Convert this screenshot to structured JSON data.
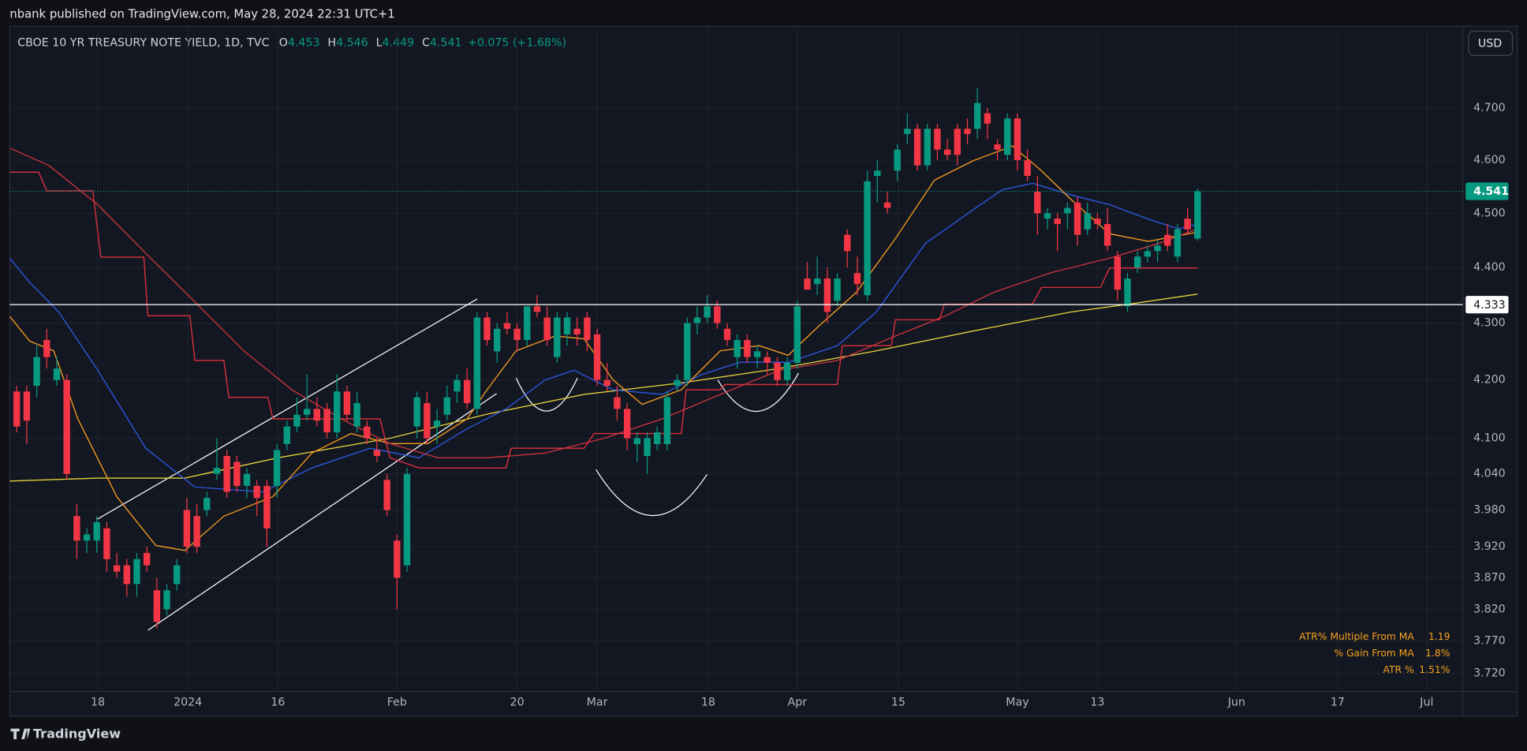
{
  "header": "nbank published on TradingView.com, May 28, 2024 22:31 UTC+1",
  "footer": "TradingView",
  "chart_data": {
    "type": "candlestick",
    "title": "CBOE 10 YR TREASURY NOTE YIELD, 1D, TVC",
    "legend_labels": {
      "open": "O",
      "high": "H",
      "low": "L",
      "close": "C"
    },
    "change_label": "+0.075 (+1.68%)",
    "currency": "USD",
    "up_color": "#089981",
    "down_color": "#f23645",
    "log_scale": true,
    "grid": true,
    "open": [
      4.18,
      4.18,
      4.19,
      4.27,
      4.2,
      4.2,
      3.97,
      3.93,
      3.93,
      3.95,
      3.89,
      3.89,
      3.86,
      3.91,
      3.85,
      3.82,
      3.86,
      3.98,
      3.97,
      3.98,
      4.04,
      4.07,
      4.06,
      4.02,
      4.02,
      4.02,
      4.02,
      4.09,
      4.12,
      4.14,
      4.15,
      4.15,
      4.11,
      4.18,
      4.12,
      4.12,
      4.08,
      4.03,
      3.93,
      3.89,
      4.12,
      4.16,
      4.12,
      4.14,
      4.18,
      4.2,
      4.15,
      4.31,
      4.25,
      4.3,
      4.29,
      4.27,
      4.33,
      4.31,
      4.24,
      4.28,
      4.29,
      4.31,
      4.28,
      4.2,
      4.17,
      4.15,
      4.09,
      4.07,
      4.09,
      4.09,
      4.19,
      4.2,
      4.3,
      4.31,
      4.33,
      4.29,
      4.24,
      4.27,
      4.24,
      4.24,
      4.23,
      4.2,
      4.23,
      4.38,
      4.37,
      4.38,
      4.34,
      4.46,
      4.39,
      4.35,
      4.57,
      4.52,
      4.58,
      4.65,
      4.66,
      4.59,
      4.66,
      4.62,
      4.66,
      4.66,
      4.66,
      4.69,
      4.63,
      4.61,
      4.68,
      4.6,
      4.54,
      4.49,
      4.49,
      4.5,
      4.52,
      4.47,
      4.49,
      4.48,
      4.42,
      4.33,
      4.4,
      4.42,
      4.43,
      4.46,
      4.42,
      4.49,
      4.453
    ],
    "high": [
      4.19,
      4.19,
      4.26,
      4.29,
      4.24,
      4.21,
      3.99,
      3.95,
      3.97,
      3.96,
      3.91,
      3.9,
      3.91,
      3.92,
      3.87,
      3.86,
      3.9,
      4.0,
      3.99,
      4.01,
      4.1,
      4.08,
      4.07,
      4.05,
      4.03,
      4.03,
      4.09,
      4.13,
      4.17,
      4.21,
      4.17,
      4.16,
      4.21,
      4.19,
      4.18,
      4.13,
      4.1,
      4.04,
      3.94,
      4.05,
      4.18,
      4.18,
      4.15,
      4.19,
      4.21,
      4.22,
      4.32,
      4.32,
      4.3,
      4.32,
      4.3,
      4.33,
      4.35,
      4.33,
      4.32,
      4.32,
      4.31,
      4.32,
      4.29,
      4.23,
      4.19,
      4.16,
      4.11,
      4.11,
      4.12,
      4.18,
      4.21,
      4.31,
      4.33,
      4.35,
      4.34,
      4.3,
      4.28,
      4.28,
      4.26,
      4.25,
      4.24,
      4.24,
      4.34,
      4.41,
      4.42,
      4.4,
      4.39,
      4.47,
      4.42,
      4.58,
      4.6,
      4.54,
      4.63,
      4.69,
      4.67,
      4.67,
      4.67,
      4.64,
      4.67,
      4.68,
      4.74,
      4.7,
      4.64,
      4.69,
      4.69,
      4.62,
      4.57,
      4.51,
      4.5,
      4.52,
      4.53,
      4.52,
      4.5,
      4.51,
      4.43,
      4.39,
      4.43,
      4.44,
      4.45,
      4.48,
      4.48,
      4.51,
      4.546
    ],
    "low": [
      4.11,
      4.09,
      4.17,
      4.22,
      4.19,
      4.03,
      3.9,
      3.91,
      3.91,
      3.88,
      3.87,
      3.84,
      3.84,
      3.88,
      3.79,
      3.81,
      3.85,
      3.91,
      3.91,
      3.97,
      4.03,
      4.0,
      4.01,
      4.0,
      3.97,
      3.92,
      4.0,
      4.08,
      4.11,
      4.13,
      4.12,
      4.1,
      4.1,
      4.13,
      4.11,
      4.09,
      4.06,
      3.97,
      3.82,
      3.88,
      4.1,
      4.09,
      4.09,
      4.13,
      4.16,
      4.15,
      4.14,
      4.26,
      4.23,
      4.28,
      4.25,
      4.26,
      4.31,
      4.26,
      4.23,
      4.26,
      4.26,
      4.25,
      4.19,
      4.18,
      4.13,
      4.08,
      4.06,
      4.04,
      4.08,
      4.08,
      4.18,
      4.19,
      4.28,
      4.3,
      4.29,
      4.26,
      4.22,
      4.23,
      4.22,
      4.21,
      4.19,
      4.19,
      4.22,
      4.36,
      4.35,
      4.3,
      4.33,
      4.4,
      4.35,
      4.34,
      4.52,
      4.5,
      4.56,
      4.63,
      4.58,
      4.58,
      4.6,
      4.6,
      4.59,
      4.63,
      4.64,
      4.64,
      4.6,
      4.6,
      4.58,
      4.56,
      4.46,
      4.47,
      4.43,
      4.47,
      4.44,
      4.46,
      4.47,
      4.43,
      4.34,
      4.32,
      4.39,
      4.41,
      4.41,
      4.43,
      4.41,
      4.46,
      4.449
    ],
    "close": [
      4.12,
      4.13,
      4.24,
      4.24,
      4.22,
      4.04,
      3.93,
      3.94,
      3.96,
      3.9,
      3.88,
      3.86,
      3.9,
      3.89,
      3.8,
      3.85,
      3.89,
      3.92,
      3.92,
      4.0,
      4.05,
      4.01,
      4.02,
      4.04,
      4.0,
      3.95,
      4.08,
      4.12,
      4.14,
      4.15,
      4.13,
      4.11,
      4.18,
      4.14,
      4.16,
      4.1,
      4.07,
      3.98,
      3.87,
      4.04,
      4.17,
      4.1,
      4.13,
      4.17,
      4.2,
      4.16,
      4.31,
      4.27,
      4.29,
      4.29,
      4.27,
      4.33,
      4.32,
      4.27,
      4.31,
      4.31,
      4.28,
      4.27,
      4.2,
      4.19,
      4.15,
      4.1,
      4.1,
      4.1,
      4.11,
      4.17,
      4.2,
      4.3,
      4.31,
      4.33,
      4.3,
      4.27,
      4.27,
      4.24,
      4.25,
      4.23,
      4.2,
      4.23,
      4.33,
      4.36,
      4.38,
      4.32,
      4.38,
      4.43,
      4.37,
      4.56,
      4.58,
      4.51,
      4.62,
      4.66,
      4.59,
      4.66,
      4.62,
      4.61,
      4.61,
      4.65,
      4.71,
      4.67,
      4.62,
      4.68,
      4.6,
      4.57,
      4.5,
      4.5,
      4.48,
      4.51,
      4.46,
      4.5,
      4.48,
      4.44,
      4.36,
      4.38,
      4.42,
      4.43,
      4.44,
      4.44,
      4.47,
      4.47,
      4.541
    ],
    "overlays": [
      {
        "color": "#e5d03a",
        "x": [
          -0.7,
          8.1,
          16.8,
          26.1,
          37.3,
          47.0,
          56.7,
          66.4,
          76.2,
          85.9,
          95.6,
          105.4,
          111.2,
          118
        ],
        "values": [
          4.028,
          4.033,
          4.033,
          4.067,
          4.1,
          4.141,
          4.175,
          4.195,
          4.22,
          4.251,
          4.286,
          4.32,
          4.334,
          4.352
        ]
      },
      {
        "color": "#2f56e0",
        "x": [
          -0.7,
          1.3,
          4.2,
          8.1,
          12.9,
          17.8,
          24.6,
          29.5,
          35.3,
          40.2,
          45.0,
          48.9,
          52.8,
          55.7,
          59.6,
          64.5,
          68.4,
          72.3,
          77.1,
          82.0,
          85.9,
          90.8,
          95.6,
          98.5,
          101.5,
          105.4,
          109.2,
          113.1,
          116.1,
          118
        ],
        "values": [
          4.417,
          4.373,
          4.32,
          4.217,
          4.083,
          4.018,
          4.01,
          4.05,
          4.083,
          4.067,
          4.116,
          4.15,
          4.2,
          4.217,
          4.183,
          4.175,
          4.209,
          4.231,
          4.231,
          4.26,
          4.32,
          4.444,
          4.507,
          4.544,
          4.556,
          4.534,
          4.516,
          4.489,
          4.471,
          4.48
        ]
      },
      {
        "color": "#f29a1f",
        "x": [
          -0.7,
          1.3,
          3.7,
          6.1,
          10.0,
          13.9,
          16.8,
          20.7,
          25.6,
          29.5,
          33.4,
          37.3,
          41.1,
          45.0,
          47.0,
          49.9,
          53.8,
          56.7,
          59.6,
          62.5,
          66.4,
          70.3,
          74.2,
          77.1,
          80.1,
          83.9,
          87.8,
          91.7,
          95.6,
          99.5,
          102.4,
          105.4,
          109.2,
          113.1,
          118
        ],
        "values": [
          4.312,
          4.268,
          4.251,
          4.133,
          4.002,
          3.922,
          3.914,
          3.97,
          4.002,
          4.075,
          4.108,
          4.091,
          4.091,
          4.133,
          4.183,
          4.251,
          4.277,
          4.272,
          4.2,
          4.158,
          4.183,
          4.251,
          4.26,
          4.243,
          4.294,
          4.355,
          4.453,
          4.562,
          4.599,
          4.627,
          4.58,
          4.525,
          4.462,
          4.448,
          4.465
        ]
      },
      {
        "color": "#c8343f",
        "x": [
          -0.7,
          3.2,
          8.1,
          12.9,
          17.8,
          22.7,
          27.5,
          32.4,
          37.3,
          42.1,
          47.0,
          52.8,
          58.7,
          64.5,
          70.3,
          76.2,
          82.0,
          87.8,
          92.7,
          97.6,
          103.4,
          109.2,
          114.1,
          118
        ],
        "values": [
          4.623,
          4.59,
          4.516,
          4.426,
          4.338,
          4.251,
          4.183,
          4.133,
          4.091,
          4.067,
          4.067,
          4.075,
          4.1,
          4.133,
          4.175,
          4.217,
          4.234,
          4.277,
          4.312,
          4.355,
          4.391,
          4.417,
          4.444,
          4.471
        ]
      },
      {
        "color": "#e0303e",
        "x": [
          -0.7,
          2.2,
          3.0,
          7.6,
          8.4,
          12.7,
          13.1,
          17.3,
          17.8,
          20.7,
          21.2,
          25.1,
          25.6,
          36.3,
          37.3,
          40.2,
          48.9,
          49.4,
          56.7,
          57.7,
          66.4,
          66.9,
          70.3,
          70.8,
          82.0,
          82.5,
          87.4,
          87.8,
          92.2,
          92.7,
          101.5,
          102.4,
          108.3,
          109.2,
          118
        ],
        "values": [
          4.577,
          4.577,
          4.542,
          4.542,
          4.419,
          4.419,
          4.313,
          4.313,
          4.234,
          4.234,
          4.17,
          4.17,
          4.133,
          4.133,
          4.067,
          4.05,
          4.05,
          4.083,
          4.083,
          4.108,
          4.108,
          4.183,
          4.183,
          4.192,
          4.192,
          4.26,
          4.26,
          4.306,
          4.306,
          4.334,
          4.334,
          4.364,
          4.364,
          4.399,
          4.399
        ]
      }
    ],
    "hline": 4.333,
    "xlim": [
      -0.7,
      144.5
    ],
    "xticks": [
      {
        "value": 8.1,
        "label": "18"
      },
      {
        "value": 17.1,
        "label": "2024"
      },
      {
        "value": 26.1,
        "label": "16"
      },
      {
        "value": 38.0,
        "label": "Feb"
      },
      {
        "value": 50.0,
        "label": "20"
      },
      {
        "value": 58.0,
        "label": "Mar"
      },
      {
        "value": 69.1,
        "label": "18"
      },
      {
        "value": 78.0,
        "label": "Apr"
      },
      {
        "value": 88.1,
        "label": "15"
      },
      {
        "value": 100.0,
        "label": "May"
      },
      {
        "value": 108.0,
        "label": "13"
      },
      {
        "value": 121.9,
        "label": "Jun"
      },
      {
        "value": 132.0,
        "label": "17"
      },
      {
        "value": 140.9,
        "label": "Jul"
      }
    ],
    "ylim": [
      3.692,
      4.8015
    ],
    "yticks": [
      {
        "value": 4.7,
        "label": "4.700"
      },
      {
        "value": 4.6,
        "label": "4.600"
      },
      {
        "value": 4.5,
        "label": "4.500"
      },
      {
        "value": 4.4,
        "label": "4.400"
      },
      {
        "value": 4.3,
        "label": "4.300"
      },
      {
        "value": 4.2,
        "label": "4.200"
      },
      {
        "value": 4.1,
        "label": "4.100"
      },
      {
        "value": 4.04,
        "label": "4.040"
      },
      {
        "value": 3.98,
        "label": "3.980"
      },
      {
        "value": 3.92,
        "label": "3.920"
      },
      {
        "value": 3.87,
        "label": "3.870"
      },
      {
        "value": 3.82,
        "label": "3.820"
      },
      {
        "value": 3.77,
        "label": "3.770"
      },
      {
        "value": 3.72,
        "label": "3.720"
      }
    ]
  },
  "indicator_table": {
    "rows": [
      [
        "ATR% Multiple From MA",
        "1.19"
      ],
      [
        "% Gain From MA",
        "1.8%"
      ],
      [
        "ATR %",
        "1.51%"
      ]
    ]
  }
}
